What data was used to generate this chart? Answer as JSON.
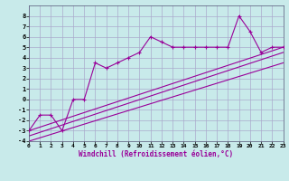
{
  "background_color": "#c8eaea",
  "grid_color": "#aaaacc",
  "line_color": "#990099",
  "xlabel": "Windchill (Refroidissement éolien,°C)",
  "xlim": [
    0,
    23
  ],
  "ylim": [
    -4,
    9
  ],
  "xtick_labels": [
    "0",
    "1",
    "2",
    "3",
    "4",
    "5",
    "6",
    "7",
    "8",
    "9",
    "10",
    "11",
    "12",
    "13",
    "14",
    "15",
    "16",
    "17",
    "18",
    "19",
    "20",
    "21",
    "22",
    "23"
  ],
  "ytick_labels": [
    "-4",
    "-3",
    "-2",
    "-1",
    "0",
    "1",
    "2",
    "3",
    "4",
    "5",
    "6",
    "7",
    "8"
  ],
  "ytick_vals": [
    -4,
    -3,
    -2,
    -1,
    0,
    1,
    2,
    3,
    4,
    5,
    6,
    7,
    8
  ],
  "xtick_vals": [
    0,
    1,
    2,
    3,
    4,
    5,
    6,
    7,
    8,
    9,
    10,
    11,
    12,
    13,
    14,
    15,
    16,
    17,
    18,
    19,
    20,
    21,
    22,
    23
  ],
  "scatter_x": [
    0,
    1,
    2,
    3,
    4,
    5,
    6,
    7,
    8,
    9,
    10,
    11,
    12,
    13,
    14,
    15,
    16,
    17,
    18,
    19,
    20,
    21,
    22,
    23
  ],
  "scatter_y": [
    -3,
    -1.5,
    -1.5,
    -3,
    0,
    0,
    3.5,
    3.0,
    3.5,
    4.0,
    4.5,
    6.0,
    5.5,
    5.0,
    5.0,
    5.0,
    5.0,
    5.0,
    5.0,
    8.0,
    6.5,
    4.5,
    5.0,
    5.0
  ],
  "line1_x": [
    0,
    23
  ],
  "line1_y": [
    -3.0,
    5.0
  ],
  "line2_x": [
    0,
    23
  ],
  "line2_y": [
    -3.5,
    4.5
  ],
  "line3_x": [
    0,
    23
  ],
  "line3_y": [
    -4.0,
    3.5
  ]
}
